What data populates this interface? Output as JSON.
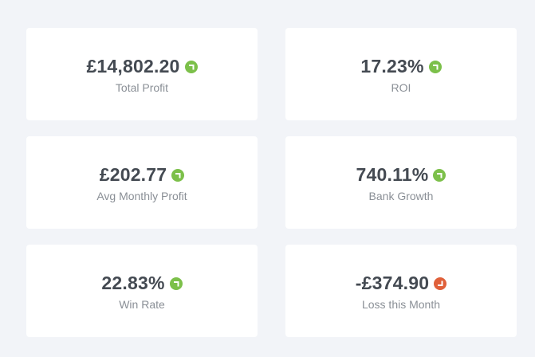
{
  "stats": [
    {
      "value": "£14,802.20",
      "label": "Total Profit",
      "trend": "up",
      "icon": "trend-up-icon"
    },
    {
      "value": "17.23%",
      "label": "ROI",
      "trend": "up",
      "icon": "trend-up-icon"
    },
    {
      "value": "£202.77",
      "label": "Avg Monthly Profit",
      "trend": "up",
      "icon": "trend-up-icon"
    },
    {
      "value": "740.11%",
      "label": "Bank Growth",
      "trend": "up",
      "icon": "trend-up-icon"
    },
    {
      "value": "22.83%",
      "label": "Win Rate",
      "trend": "up",
      "icon": "trend-up-icon"
    },
    {
      "value": "-£374.90",
      "label": "Loss this Month",
      "trend": "down",
      "icon": "trend-down-icon"
    }
  ],
  "colors": {
    "up": "#7cc04a",
    "down": "#e0603a",
    "value_text": "#444a52",
    "label_text": "#8a8f96",
    "background": "#f2f4f8",
    "card": "#ffffff"
  }
}
